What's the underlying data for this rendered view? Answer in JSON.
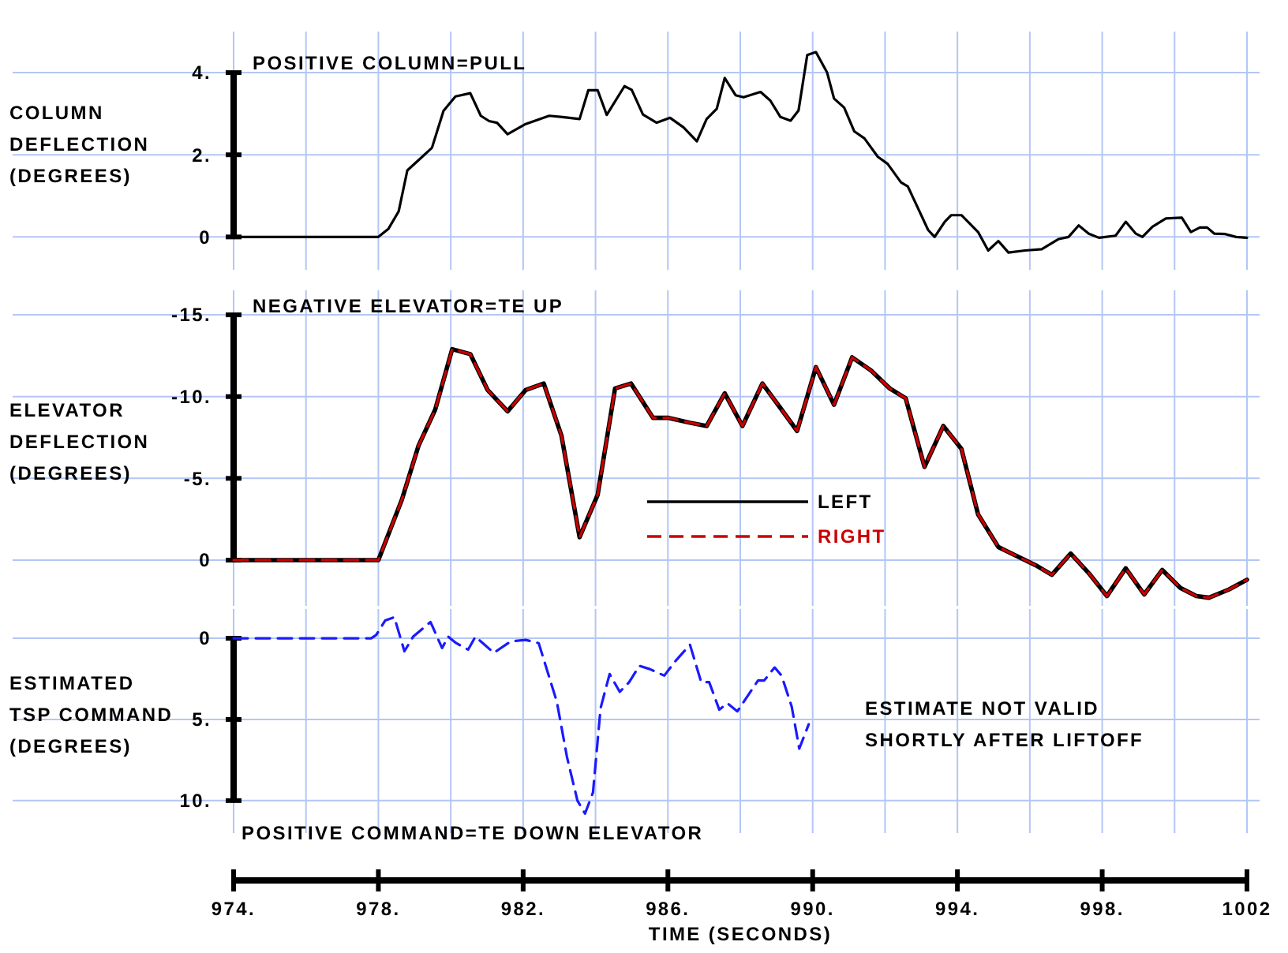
{
  "chart_data": [
    {
      "type": "line",
      "ylabel": "COLUMN\nDEFLECTION\n(DEGREES)",
      "annotations": [
        "POSITIVE COLUMN=PULL"
      ],
      "tick_labels": "y",
      "grid": true,
      "marker": "none",
      "line_style": "solid",
      "xlim": [
        974,
        1002
      ],
      "xticks": [
        {
          "value": 974,
          "label": null
        },
        {
          "value": 976,
          "label": null
        },
        {
          "value": 978,
          "label": null
        },
        {
          "value": 980,
          "label": null
        },
        {
          "value": 982,
          "label": null
        },
        {
          "value": 984,
          "label": null
        },
        {
          "value": 986,
          "label": null
        },
        {
          "value": 988,
          "label": null
        },
        {
          "value": 990,
          "label": null
        },
        {
          "value": 992,
          "label": null
        },
        {
          "value": 994,
          "label": null
        },
        {
          "value": 996,
          "label": null
        },
        {
          "value": 998,
          "label": null
        },
        {
          "value": 1000,
          "label": null
        },
        {
          "value": 1002,
          "label": null
        }
      ],
      "ylim": [
        -0.8,
        5
      ],
      "yticks": [
        {
          "value": 0,
          "label": "0"
        },
        {
          "value": 2,
          "label": "2."
        },
        {
          "value": 4,
          "label": "4."
        }
      ],
      "series": [
        {
          "color": "#000000",
          "x": [
            974,
            978,
            978.28,
            978.56,
            978.8,
            979.11,
            979.48,
            979.8,
            980.13,
            980.54,
            980.83,
            981.06,
            981.28,
            981.57,
            982.07,
            982.72,
            983.09,
            983.56,
            983.8,
            984.06,
            984.31,
            984.8,
            985.0,
            985.31,
            985.69,
            986.06,
            986.43,
            986.8,
            987.07,
            987.35,
            987.57,
            987.87,
            988.09,
            988.56,
            988.83,
            989.11,
            989.39,
            989.61,
            989.85,
            990.09,
            990.4,
            990.59,
            990.87,
            991.15,
            991.43,
            991.8,
            992.07,
            992.44,
            992.63,
            992.91,
            993.19,
            993.37,
            993.65,
            993.83,
            994.11,
            994.57,
            994.85,
            995.13,
            995.41,
            995.87,
            996.33,
            996.8,
            997.07,
            997.35,
            997.63,
            997.91,
            998.37,
            998.65,
            998.93,
            999.11,
            999.39,
            999.76,
            1000.2,
            1000.45,
            1000.7,
            1000.9,
            1001.1,
            1001.4,
            1001.7,
            1002
          ],
          "values": [
            0,
            0,
            0.2,
            0.62,
            1.62,
            1.87,
            2.17,
            3.07,
            3.42,
            3.5,
            2.95,
            2.82,
            2.78,
            2.5,
            2.75,
            2.95,
            2.92,
            2.87,
            3.57,
            3.57,
            2.97,
            3.67,
            3.58,
            2.98,
            2.78,
            2.9,
            2.67,
            2.33,
            2.87,
            3.12,
            3.87,
            3.45,
            3.4,
            3.53,
            3.32,
            2.92,
            2.83,
            3.08,
            4.43,
            4.5,
            4.0,
            3.37,
            3.15,
            2.57,
            2.4,
            1.95,
            1.78,
            1.33,
            1.23,
            0.7,
            0.17,
            0,
            0.37,
            0.53,
            0.53,
            0.12,
            -0.33,
            -0.1,
            -0.38,
            -0.33,
            -0.3,
            -0.05,
            0,
            0.28,
            0.08,
            -0.02,
            0.03,
            0.37,
            0.08,
            0,
            0.25,
            0.45,
            0.47,
            0.12,
            0.23,
            0.23,
            0.08,
            0.07,
            0,
            -0.02
          ]
        }
      ]
    },
    {
      "type": "line",
      "ylabel": "ELEVATOR\nDEFLECTION\n(DEGREES)",
      "annotations": [
        "NEGATIVE ELEVATOR=TE UP"
      ],
      "tick_labels": "y",
      "grid": true,
      "marker": "none",
      "legend": "center",
      "xlim": [
        974,
        1002
      ],
      "xticks": [
        {
          "value": 974,
          "label": null
        },
        {
          "value": 976,
          "label": null
        },
        {
          "value": 978,
          "label": null
        },
        {
          "value": 980,
          "label": null
        },
        {
          "value": 982,
          "label": null
        },
        {
          "value": 984,
          "label": null
        },
        {
          "value": 986,
          "label": null
        },
        {
          "value": 988,
          "label": null
        },
        {
          "value": 990,
          "label": null
        },
        {
          "value": 992,
          "label": null
        },
        {
          "value": 994,
          "label": null
        },
        {
          "value": 996,
          "label": null
        },
        {
          "value": 998,
          "label": null
        },
        {
          "value": 1000,
          "label": null
        },
        {
          "value": 1002,
          "label": null
        }
      ],
      "ylim": [
        2.8,
        -16.5
      ],
      "yticks": [
        {
          "value": 0,
          "label": "0"
        },
        {
          "value": -5,
          "label": "-5."
        },
        {
          "value": -10,
          "label": "-10."
        },
        {
          "value": -15,
          "label": "-15."
        }
      ],
      "series": [
        {
          "name": "LEFT",
          "color": "#000000",
          "line_style": "solid",
          "x": [
            974,
            978,
            978.65,
            979.11,
            979.57,
            980.04,
            980.54,
            981.02,
            981.57,
            982.07,
            982.57,
            983.06,
            983.56,
            984.06,
            984.54,
            984.98,
            985.59,
            986.02,
            986.61,
            987.07,
            987.57,
            988.06,
            988.61,
            989.11,
            989.57,
            990.09,
            990.59,
            991.09,
            991.61,
            992.13,
            992.57,
            993.09,
            993.61,
            994.11,
            994.57,
            995.13,
            995.59,
            996.15,
            996.61,
            997.13,
            997.63,
            998.13,
            998.65,
            999.16,
            999.66,
            1000.16,
            1000.6,
            1000.95,
            1001.5,
            1002
          ],
          "values": [
            0,
            0,
            -3.7,
            -7.0,
            -9.2,
            -12.9,
            -12.6,
            -10.4,
            -9.1,
            -10.4,
            -10.8,
            -7.6,
            -1.4,
            -4.0,
            -10.5,
            -10.8,
            -8.7,
            -8.7,
            -8.4,
            -8.2,
            -10.2,
            -8.2,
            -10.8,
            -9.3,
            -7.9,
            -11.8,
            -9.5,
            -12.4,
            -11.6,
            -10.5,
            -9.9,
            -5.7,
            -8.2,
            -6.8,
            -2.8,
            -0.8,
            -0.3,
            0.3,
            0.9,
            -0.4,
            0.8,
            2.2,
            0.5,
            2.1,
            0.6,
            1.7,
            2.2,
            2.3,
            1.8,
            1.2
          ]
        },
        {
          "name": "RIGHT",
          "color": "#cc0000",
          "line_style": "dashed",
          "x": [
            974,
            978,
            978.65,
            979.11,
            979.57,
            980.04,
            980.54,
            981.02,
            981.57,
            982.07,
            982.57,
            983.06,
            983.56,
            984.06,
            984.54,
            984.98,
            985.59,
            986.02,
            986.61,
            987.07,
            987.57,
            988.06,
            988.61,
            989.11,
            989.57,
            990.09,
            990.59,
            991.09,
            991.61,
            992.13,
            992.57,
            993.09,
            993.61,
            994.11,
            994.57,
            995.13,
            995.59,
            996.15,
            996.61,
            997.13,
            997.63,
            998.13,
            998.65,
            999.16,
            999.66,
            1000.16,
            1000.6,
            1000.95,
            1001.5,
            1002
          ],
          "values": [
            0,
            0,
            -3.7,
            -7.0,
            -9.2,
            -12.9,
            -12.6,
            -10.4,
            -9.1,
            -10.4,
            -10.8,
            -7.6,
            -1.4,
            -4.0,
            -10.5,
            -10.8,
            -8.7,
            -8.7,
            -8.4,
            -8.2,
            -10.2,
            -8.2,
            -10.8,
            -9.3,
            -7.9,
            -11.8,
            -9.5,
            -12.4,
            -11.6,
            -10.5,
            -9.9,
            -5.7,
            -8.2,
            -6.8,
            -2.8,
            -0.8,
            -0.3,
            0.3,
            0.9,
            -0.4,
            0.8,
            2.2,
            0.5,
            2.1,
            0.6,
            1.7,
            2.2,
            2.3,
            1.8,
            1.2
          ]
        }
      ]
    },
    {
      "type": "line",
      "ylabel": "ESTIMATED\nTSP COMMAND\n(DEGREES)",
      "xlabel": "TIME (SECONDS)",
      "annotations": [
        "ESTIMATE NOT VALID\nSHORTLY AFTER LIFTOFF",
        "POSITIVE COMMAND=TE DOWN ELEVATOR"
      ],
      "grid": true,
      "marker": "none",
      "line_style": "dashed",
      "xlim": [
        974,
        1002
      ],
      "xticks": [
        {
          "value": 974,
          "label": "974."
        },
        {
          "value": 976,
          "label": null
        },
        {
          "value": 978,
          "label": "978."
        },
        {
          "value": 980,
          "label": null
        },
        {
          "value": 982,
          "label": "982."
        },
        {
          "value": 984,
          "label": null
        },
        {
          "value": 986,
          "label": "986."
        },
        {
          "value": 988,
          "label": null
        },
        {
          "value": 990,
          "label": "990."
        },
        {
          "value": 992,
          "label": null
        },
        {
          "value": 994,
          "label": "994."
        },
        {
          "value": 996,
          "label": null
        },
        {
          "value": 998,
          "label": "998."
        },
        {
          "value": 1000,
          "label": null
        },
        {
          "value": 1002,
          "label": "1002"
        }
      ],
      "ylim": [
        12,
        -1.8
      ],
      "yticks": [
        {
          "value": 0,
          "label": "0"
        },
        {
          "value": 5,
          "label": "5."
        },
        {
          "value": 10,
          "label": "10."
        }
      ],
      "series": [
        {
          "color": "#1a1aff",
          "x": [
            974,
            977.8,
            977.94,
            978.19,
            978.44,
            978.72,
            978.96,
            979.44,
            979.76,
            979.93,
            980.15,
            980.48,
            980.68,
            981.19,
            981.65,
            982.07,
            982.43,
            982.93,
            983.21,
            983.5,
            983.71,
            983.93,
            984.14,
            984.39,
            984.67,
            984.93,
            985.21,
            985.5,
            985.9,
            986.21,
            986.61,
            986.92,
            987.14,
            987.42,
            987.64,
            987.92,
            988.49,
            988.66,
            988.95,
            989.14,
            989.42,
            989.63,
            989.89
          ],
          "values": [
            0,
            0,
            -0.2,
            -1.1,
            -1.3,
            0.8,
            -0.1,
            -1.0,
            0.6,
            -0.1,
            0.3,
            0.7,
            -0.1,
            0.9,
            0.2,
            0.1,
            0.3,
            3.9,
            7.3,
            10.0,
            10.8,
            9.5,
            4.3,
            2.2,
            3.3,
            2.7,
            1.7,
            1.9,
            2.3,
            1.4,
            0.4,
            2.7,
            2.7,
            4.4,
            4.0,
            4.5,
            2.6,
            2.6,
            1.8,
            2.3,
            4.2,
            6.8,
            5.3
          ]
        }
      ]
    }
  ]
}
